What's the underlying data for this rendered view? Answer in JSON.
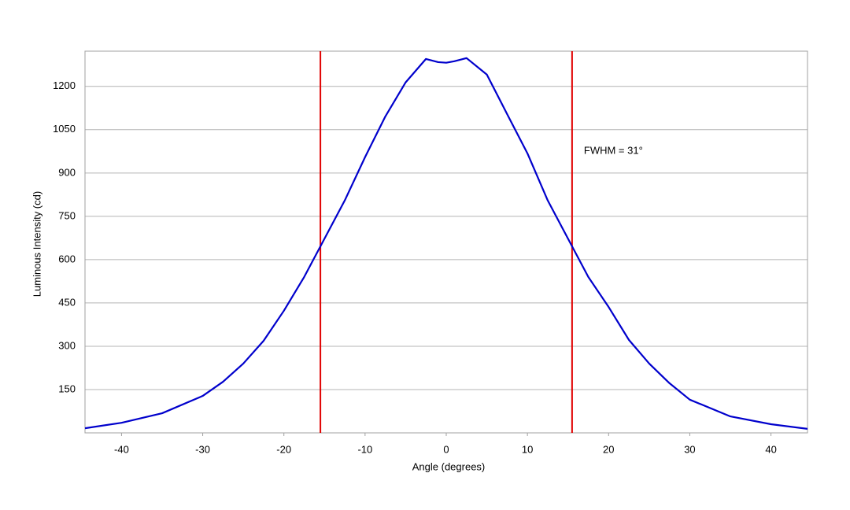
{
  "chart_data": {
    "type": "line",
    "x_label": "Angle (degrees)",
    "y_label": "Luminous Intensity (cd)",
    "x": [
      -44.5,
      -40,
      -35,
      -30,
      -27.5,
      -25,
      -22.5,
      -20,
      -17.5,
      -15.5,
      -12.5,
      -10,
      -7.5,
      -5,
      -2.5,
      -1,
      0,
      1,
      2.5,
      5,
      7.5,
      10,
      12.5,
      15.5,
      17.5,
      20,
      22.5,
      25,
      27.5,
      30,
      35,
      40,
      44.5
    ],
    "series": [
      {
        "color": "#0000cc",
        "values": [
          16,
          35,
          68,
          128,
          177,
          240,
          319,
          423,
          540,
          646,
          805,
          955,
          1096,
          1214,
          1295,
          1284,
          1282,
          1287,
          1298,
          1241,
          1104,
          968,
          805,
          646,
          540,
          436,
          322,
          240,
          172,
          115,
          57,
          30,
          14
        ]
      }
    ],
    "vlines": [
      -15.5,
      15.5
    ],
    "vline_color": "#e00000",
    "annotation": "FWHM = 31°",
    "xlim": [
      -44.5,
      44.5
    ],
    "xticks": [
      -40,
      -30,
      -20,
      -10,
      0,
      10,
      20,
      30,
      40
    ],
    "ylim": [
      0,
      1322
    ],
    "yticks": [
      150,
      300,
      450,
      600,
      750,
      900,
      1050,
      1200
    ],
    "grid": true
  }
}
